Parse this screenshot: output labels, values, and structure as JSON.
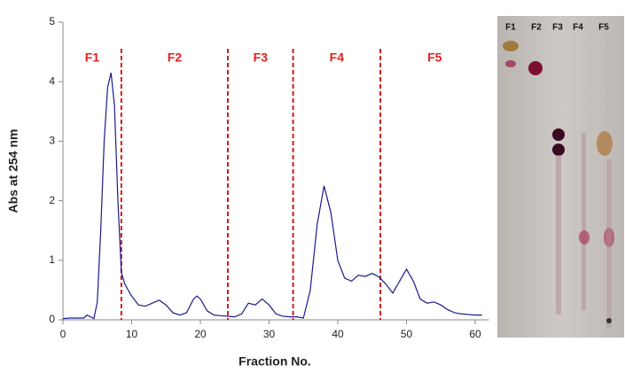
{
  "chart_data": {
    "type": "line",
    "x_label": "Fraction No.",
    "y_label": "Abs at 254 nm",
    "x": [
      0,
      1,
      2,
      3,
      3.5,
      4,
      4.5,
      5,
      5.5,
      6,
      6.5,
      7,
      7.5,
      8,
      8.5,
      9,
      10,
      11,
      12,
      13,
      14,
      15,
      16,
      17,
      18,
      19,
      19.5,
      20,
      21,
      22,
      23,
      24,
      25,
      26,
      27,
      28,
      29,
      30,
      31,
      32,
      33,
      34,
      35,
      36,
      37,
      38,
      39,
      40,
      41,
      42,
      43,
      44,
      45,
      46,
      47,
      48,
      49,
      50,
      51,
      52,
      53,
      54,
      55,
      56,
      57,
      58,
      59,
      60,
      61
    ],
    "series": [
      {
        "color": "#1a1a8c",
        "values": [
          0.02,
          0.03,
          0.03,
          0.03,
          0.08,
          0.05,
          0.02,
          0.3,
          1.5,
          3.0,
          3.9,
          4.15,
          3.6,
          2.0,
          0.8,
          0.6,
          0.4,
          0.25,
          0.23,
          0.28,
          0.33,
          0.25,
          0.12,
          0.08,
          0.12,
          0.35,
          0.4,
          0.35,
          0.15,
          0.08,
          0.07,
          0.06,
          0.05,
          0.1,
          0.28,
          0.25,
          0.35,
          0.25,
          0.1,
          0.06,
          0.05,
          0.05,
          0.03,
          0.5,
          1.6,
          2.25,
          1.8,
          1.0,
          0.7,
          0.65,
          0.75,
          0.73,
          0.78,
          0.72,
          0.6,
          0.45,
          0.65,
          0.85,
          0.65,
          0.35,
          0.28,
          0.3,
          0.25,
          0.17,
          0.12,
          0.1,
          0.09,
          0.08,
          0.08
        ]
      }
    ],
    "xlim": [
      0,
      62
    ],
    "ylim": [
      0,
      5
    ],
    "xticks": [
      0,
      10,
      20,
      30,
      40,
      50,
      60
    ],
    "yticks": [
      0,
      1,
      2,
      3,
      4,
      5
    ],
    "dividers": [
      8.5,
      24,
      33.5,
      46.2
    ],
    "divider_color": "#d01c1c",
    "regions": [
      "F1",
      "F2",
      "F3",
      "F4",
      "F5"
    ],
    "plate_lanes": [
      "F1",
      "F2",
      "F3",
      "F4",
      "F5"
    ]
  }
}
